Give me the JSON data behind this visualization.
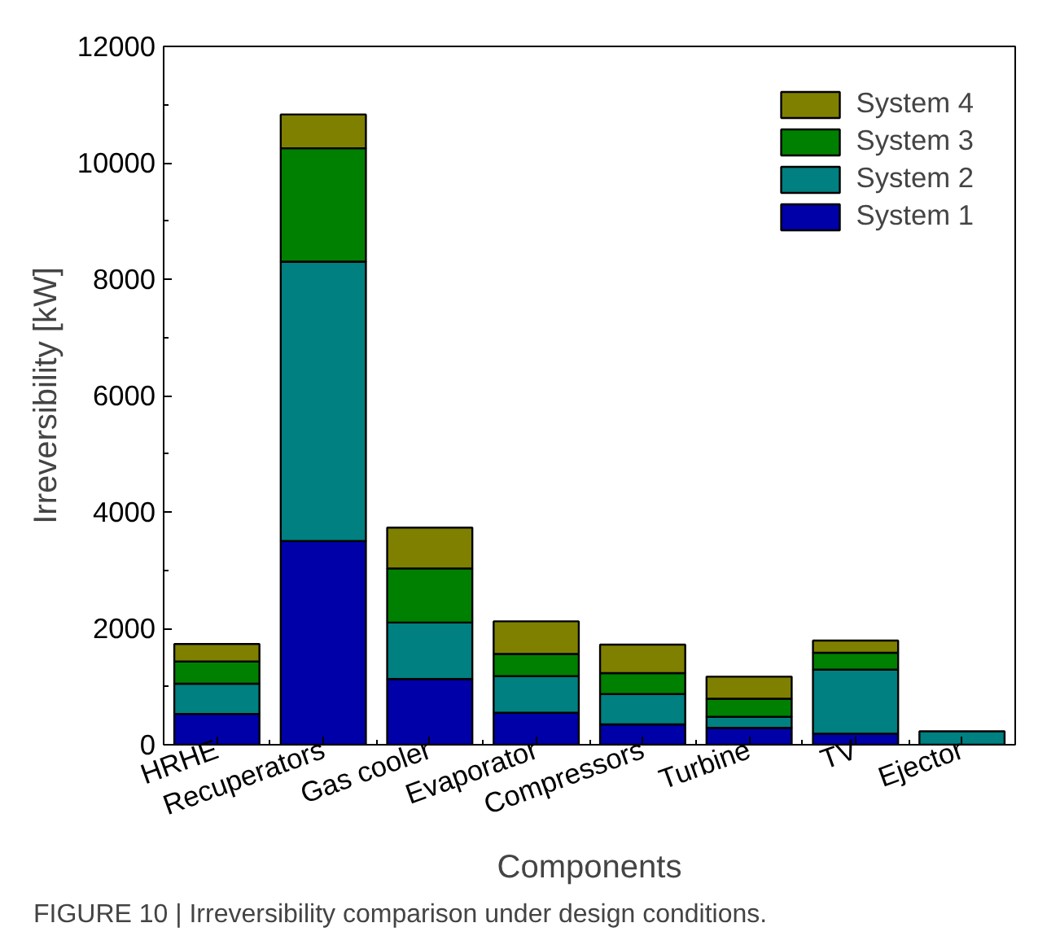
{
  "chart_data": {
    "type": "bar",
    "stacked": true,
    "categories": [
      "HRHE",
      "Recuperators",
      "Gas cooler",
      "Evaporator",
      "Compressors",
      "Turbine",
      "TV",
      "Ejector"
    ],
    "series": [
      {
        "name": "System 1",
        "color": "#0000a8",
        "values": [
          530,
          3500,
          1130,
          550,
          350,
          290,
          190,
          0
        ]
      },
      {
        "name": "System 2",
        "color": "#008080",
        "values": [
          520,
          4800,
          970,
          630,
          520,
          190,
          1100,
          230
        ]
      },
      {
        "name": "System 3",
        "color": "#008000",
        "values": [
          380,
          1950,
          930,
          380,
          360,
          310,
          290,
          0
        ]
      },
      {
        "name": "System 4",
        "color": "#808000",
        "values": [
          300,
          580,
          700,
          560,
          490,
          380,
          210,
          0
        ]
      }
    ],
    "xlabel": "Components",
    "ylabel": "Irreversibility [kW]",
    "ylim": [
      0,
      12000
    ],
    "yticks": [
      0,
      2000,
      4000,
      6000,
      8000,
      10000,
      12000
    ],
    "legend": "top right",
    "grid": false,
    "annotations": [
      "FIGURE 10 | Irreversibility comparison under design conditions."
    ]
  }
}
